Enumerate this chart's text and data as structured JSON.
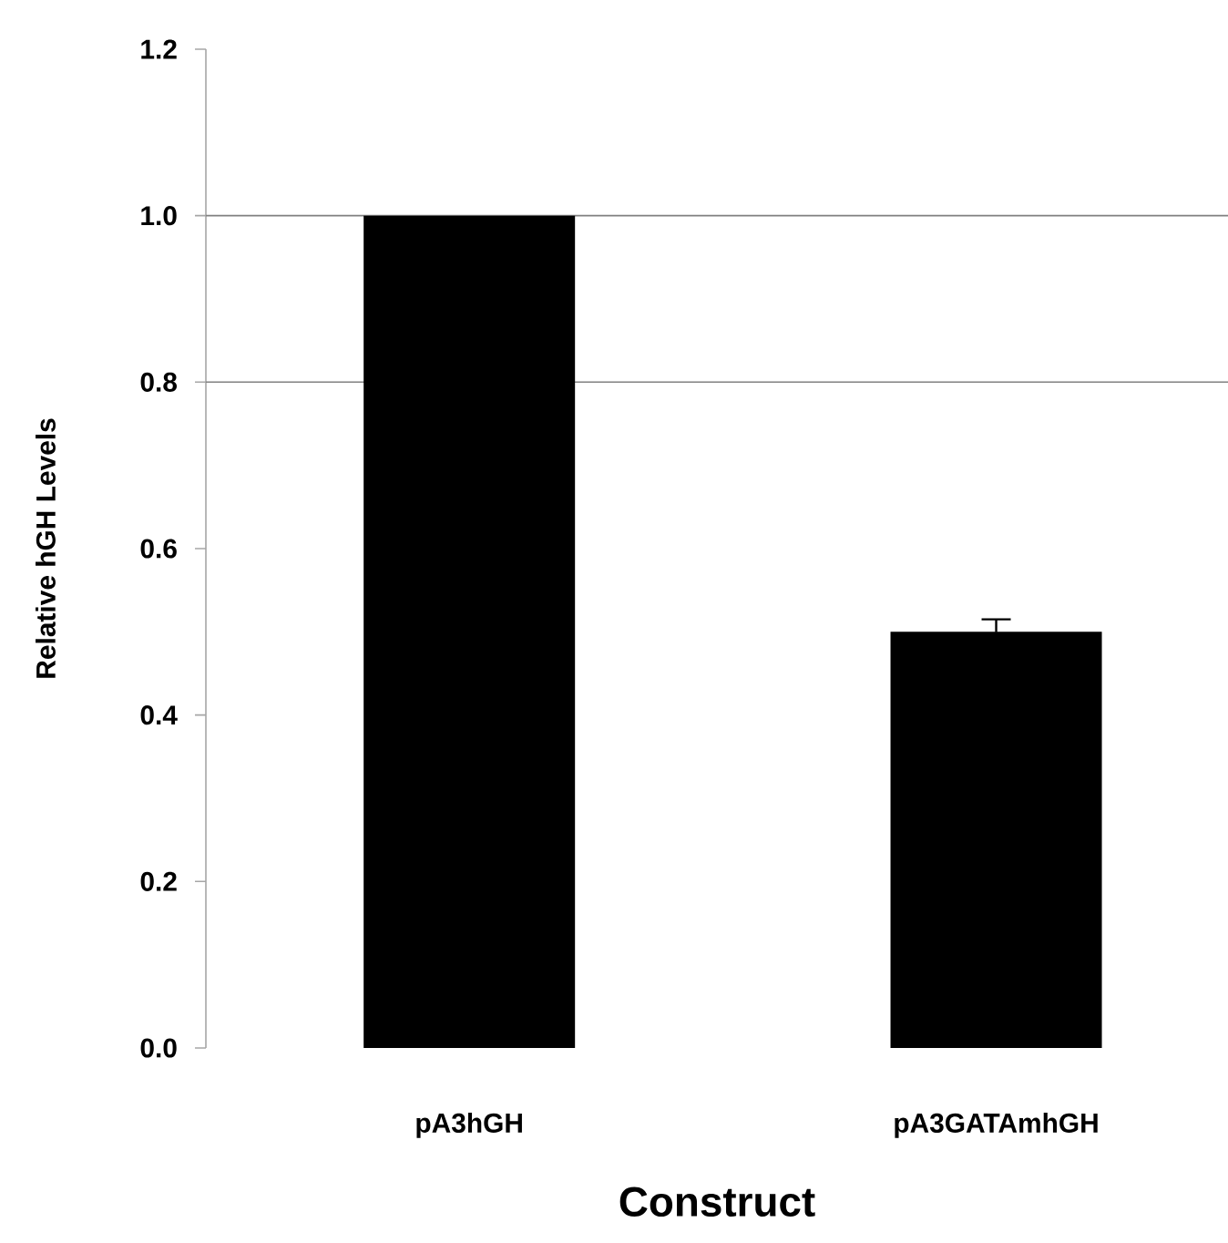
{
  "chart_data": {
    "type": "bar",
    "xlabel": "Construct",
    "ylabel": "Relative hGH Levels",
    "categories": [
      "pA3hGH",
      "pA3GATAmhGH"
    ],
    "values": [
      1.0,
      0.5
    ],
    "errors": [
      null,
      0.015
    ],
    "color": "#000000",
    "ylim": [
      0,
      1.2
    ],
    "yticks": [
      {
        "value": 0,
        "label": "0.0"
      },
      {
        "value": 0.2,
        "label": "0.2"
      },
      {
        "value": 0.4,
        "label": "0.4"
      },
      {
        "value": 0.6,
        "label": "0.6"
      },
      {
        "value": 0.8,
        "label": "0.8"
      },
      {
        "value": 1.0,
        "label": "1.0"
      },
      {
        "value": 1.2,
        "label": "1.2"
      }
    ],
    "ref_lines": [
      {
        "axis": "y",
        "value": 0.8,
        "color": "#808080"
      },
      {
        "axis": "y",
        "value": 1.0,
        "color": "#808080"
      }
    ],
    "grid": false
  }
}
